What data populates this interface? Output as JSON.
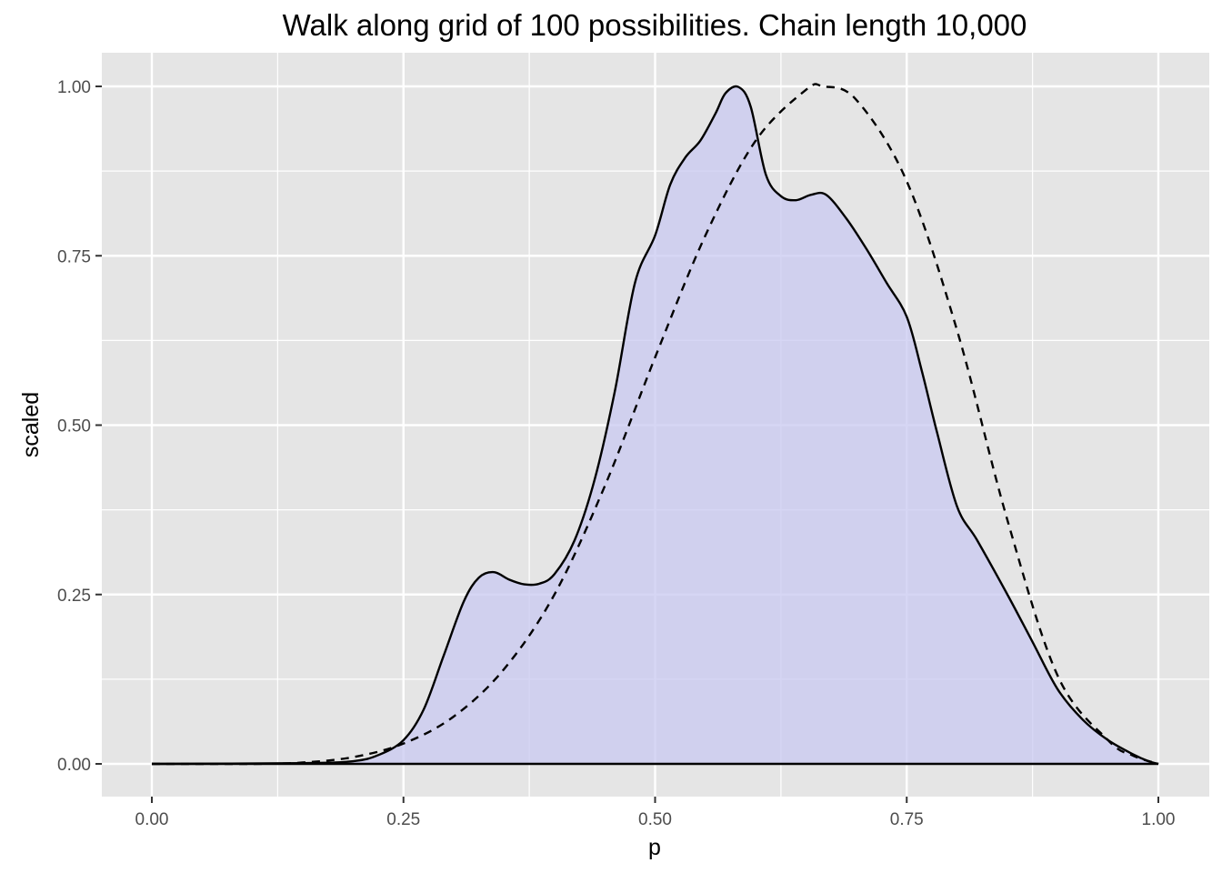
{
  "chart_data": {
    "type": "area",
    "title": "Walk along grid of 100 possibilities.  Chain length 10,000",
    "xlabel": "p",
    "ylabel": "scaled",
    "xlim": [
      0,
      1
    ],
    "ylim": [
      0,
      1
    ],
    "x_ticks": [
      "0.00",
      "0.25",
      "0.50",
      "0.75",
      "1.00"
    ],
    "y_ticks": [
      "0.00",
      "0.25",
      "0.50",
      "0.75",
      "1.00"
    ],
    "grid": true,
    "legend": "none",
    "colors": {
      "panel_background": "#e5e5e5",
      "gridline": "#ffffff",
      "fill": "#c8c8f0",
      "fill_opacity": 0.75,
      "line": "#000000"
    },
    "series": [
      {
        "style": "solid-filled",
        "x": [
          0.0,
          0.15,
          0.2,
          0.225,
          0.25,
          0.27,
          0.29,
          0.31,
          0.325,
          0.34,
          0.355,
          0.37,
          0.385,
          0.4,
          0.42,
          0.44,
          0.46,
          0.48,
          0.5,
          0.515,
          0.53,
          0.545,
          0.56,
          0.57,
          0.583,
          0.595,
          0.61,
          0.625,
          0.64,
          0.655,
          0.67,
          0.69,
          0.71,
          0.73,
          0.75,
          0.765,
          0.78,
          0.8,
          0.82,
          0.85,
          0.875,
          0.9,
          0.925,
          0.95,
          0.975,
          0.99,
          1.0
        ],
        "y": [
          0.0,
          0.001,
          0.004,
          0.013,
          0.035,
          0.08,
          0.16,
          0.24,
          0.275,
          0.283,
          0.272,
          0.265,
          0.266,
          0.28,
          0.33,
          0.42,
          0.55,
          0.71,
          0.78,
          0.855,
          0.895,
          0.92,
          0.96,
          0.99,
          0.999,
          0.97,
          0.87,
          0.838,
          0.832,
          0.84,
          0.84,
          0.805,
          0.76,
          0.71,
          0.66,
          0.58,
          0.49,
          0.38,
          0.33,
          0.25,
          0.18,
          0.11,
          0.065,
          0.035,
          0.014,
          0.004,
          0.0
        ]
      },
      {
        "style": "dashed",
        "x": [
          0.0,
          0.1,
          0.15,
          0.2,
          0.25,
          0.3,
          0.35,
          0.4,
          0.45,
          0.5,
          0.55,
          0.6,
          0.65,
          0.667,
          0.7,
          0.75,
          0.8,
          0.85,
          0.9,
          0.95,
          0.975,
          1.0
        ],
        "y": [
          0.0,
          0.0,
          0.002,
          0.01,
          0.03,
          0.07,
          0.14,
          0.25,
          0.41,
          0.6,
          0.78,
          0.92,
          0.995,
          1.0,
          0.98,
          0.86,
          0.64,
          0.36,
          0.13,
          0.035,
          0.012,
          0.0
        ]
      }
    ]
  }
}
